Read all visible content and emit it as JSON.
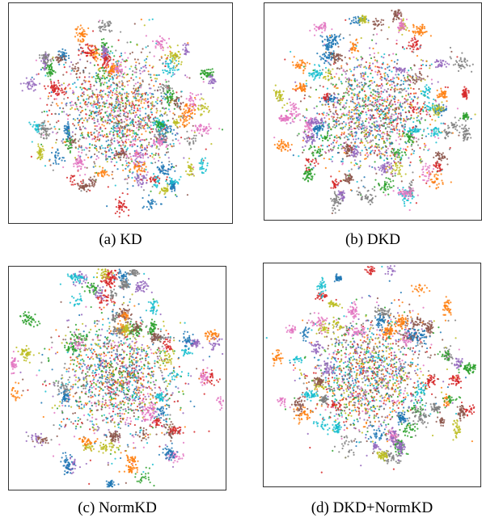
{
  "figure": {
    "panels": [
      {
        "id": "a",
        "caption": "(a) KD",
        "seed": 11,
        "spread": 1.0
      },
      {
        "id": "b",
        "caption": "(b) DKD",
        "seed": 23,
        "spread": 1.05
      },
      {
        "id": "c",
        "caption": "(c) NormKD",
        "seed": 37,
        "spread": 1.15
      },
      {
        "id": "d",
        "caption": "(d) DKD+NormKD",
        "seed": 53,
        "spread": 1.1
      }
    ],
    "palette": [
      "#1f77b4",
      "#ff7f0e",
      "#2ca02c",
      "#d62728",
      "#9467bd",
      "#8c564b",
      "#e377c2",
      "#7f7f7f",
      "#bcbd22",
      "#17becf"
    ]
  }
}
